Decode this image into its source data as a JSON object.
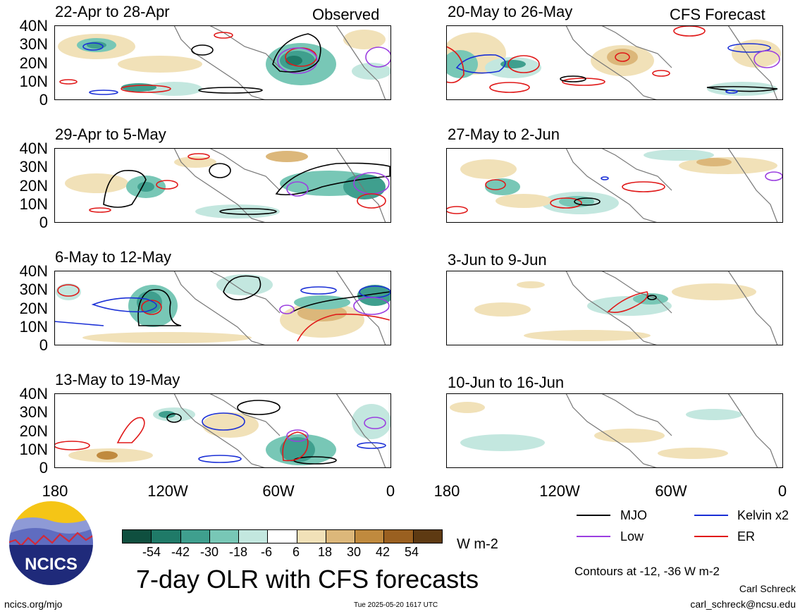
{
  "columns": {
    "left_label": "Observed",
    "right_label": "CFS Forecast"
  },
  "panels": [
    {
      "title": "22-Apr to 28-Apr",
      "column": "left"
    },
    {
      "title": "29-Apr to 5-May",
      "column": "left"
    },
    {
      "title": "6-May to 12-May",
      "column": "left"
    },
    {
      "title": "13-May to 19-May",
      "column": "left"
    },
    {
      "title": "20-May to 26-May",
      "column": "right"
    },
    {
      "title": "27-May to 2-Jun",
      "column": "right"
    },
    {
      "title": "3-Jun to 9-Jun",
      "column": "right"
    },
    {
      "title": "10-Jun to 16-Jun",
      "column": "right"
    }
  ],
  "y_ticks": [
    "40N",
    "30N",
    "20N",
    "10N",
    "0"
  ],
  "x_ticks": [
    "180",
    "120W",
    "60W",
    "0"
  ],
  "colorbar": {
    "labels": [
      "-54",
      "-42",
      "-30",
      "-18",
      "-6",
      "6",
      "18",
      "30",
      "42",
      "54"
    ],
    "colors": [
      "#0f4f3f",
      "#1f7a68",
      "#3f9f8e",
      "#78c7b6",
      "#c3e7df",
      "#ffffff",
      "#f1e1b8",
      "#dcb77a",
      "#c08a3e",
      "#9a6020",
      "#5e3a12"
    ],
    "unit": "W m-2"
  },
  "legend": {
    "items": [
      {
        "label": "MJO",
        "color": "#000000"
      },
      {
        "label": "Kelvin x2",
        "color": "#1a2fd6"
      },
      {
        "label": "Low",
        "color": "#9b3fe0"
      },
      {
        "label": "ER",
        "color": "#e01818"
      }
    ],
    "note": "Contours at -12, -36 W m-2"
  },
  "title": "7-day OLR with CFS forecasts",
  "logo_text": "NCICS",
  "footer": {
    "url": "ncics.org/mjo",
    "timestamp": "Tue 2025-05-20 1617 UTC",
    "author": "Carl Schreck",
    "email": "carl_schreck@ncsu.edu"
  }
}
